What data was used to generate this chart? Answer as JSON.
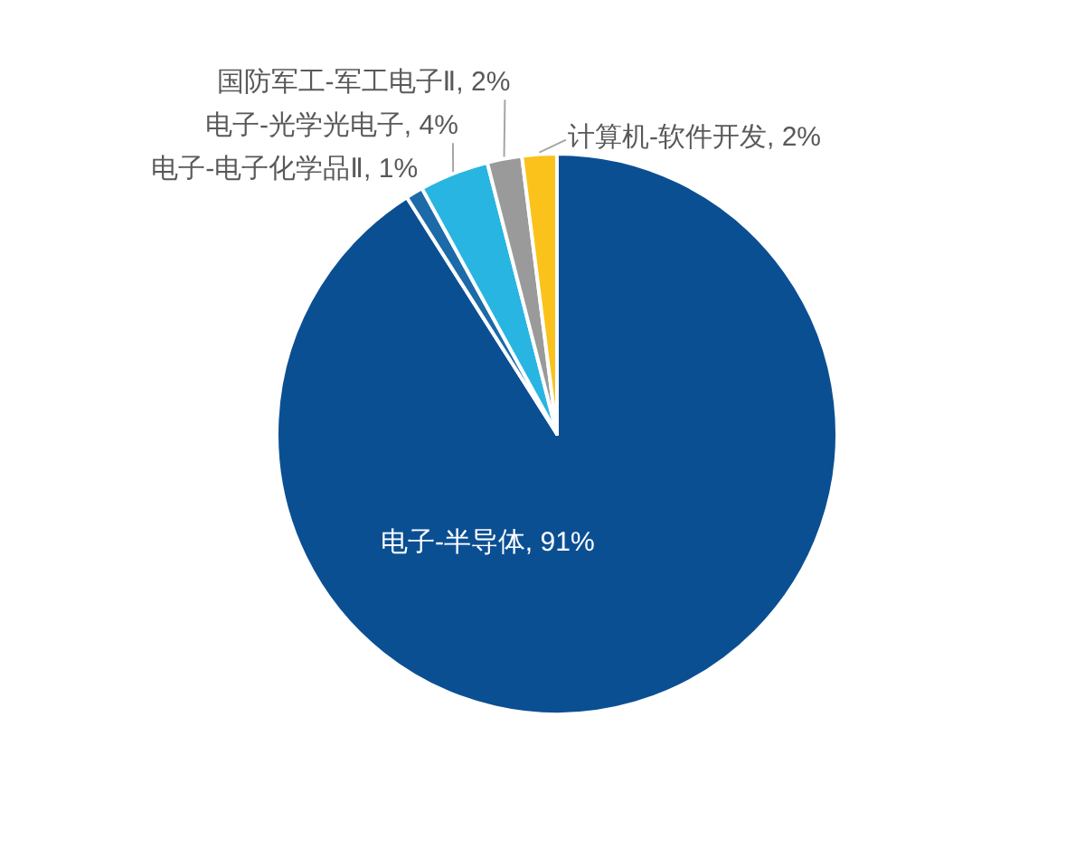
{
  "chart_data": {
    "type": "pie",
    "categories": [
      "电子-半导体",
      "电子-电子化学品Ⅱ",
      "电子-光学光电子",
      "国防军工-军工电子Ⅱ",
      "计算机-软件开发"
    ],
    "values": [
      91,
      1,
      4,
      2,
      2
    ],
    "colors": [
      "#0b4f93",
      "#1d6aa8",
      "#29b5e2",
      "#9a9a9a",
      "#fbc21b"
    ],
    "value_labels": [
      "91%",
      "1%",
      "4%",
      "2%",
      "2%"
    ]
  }
}
